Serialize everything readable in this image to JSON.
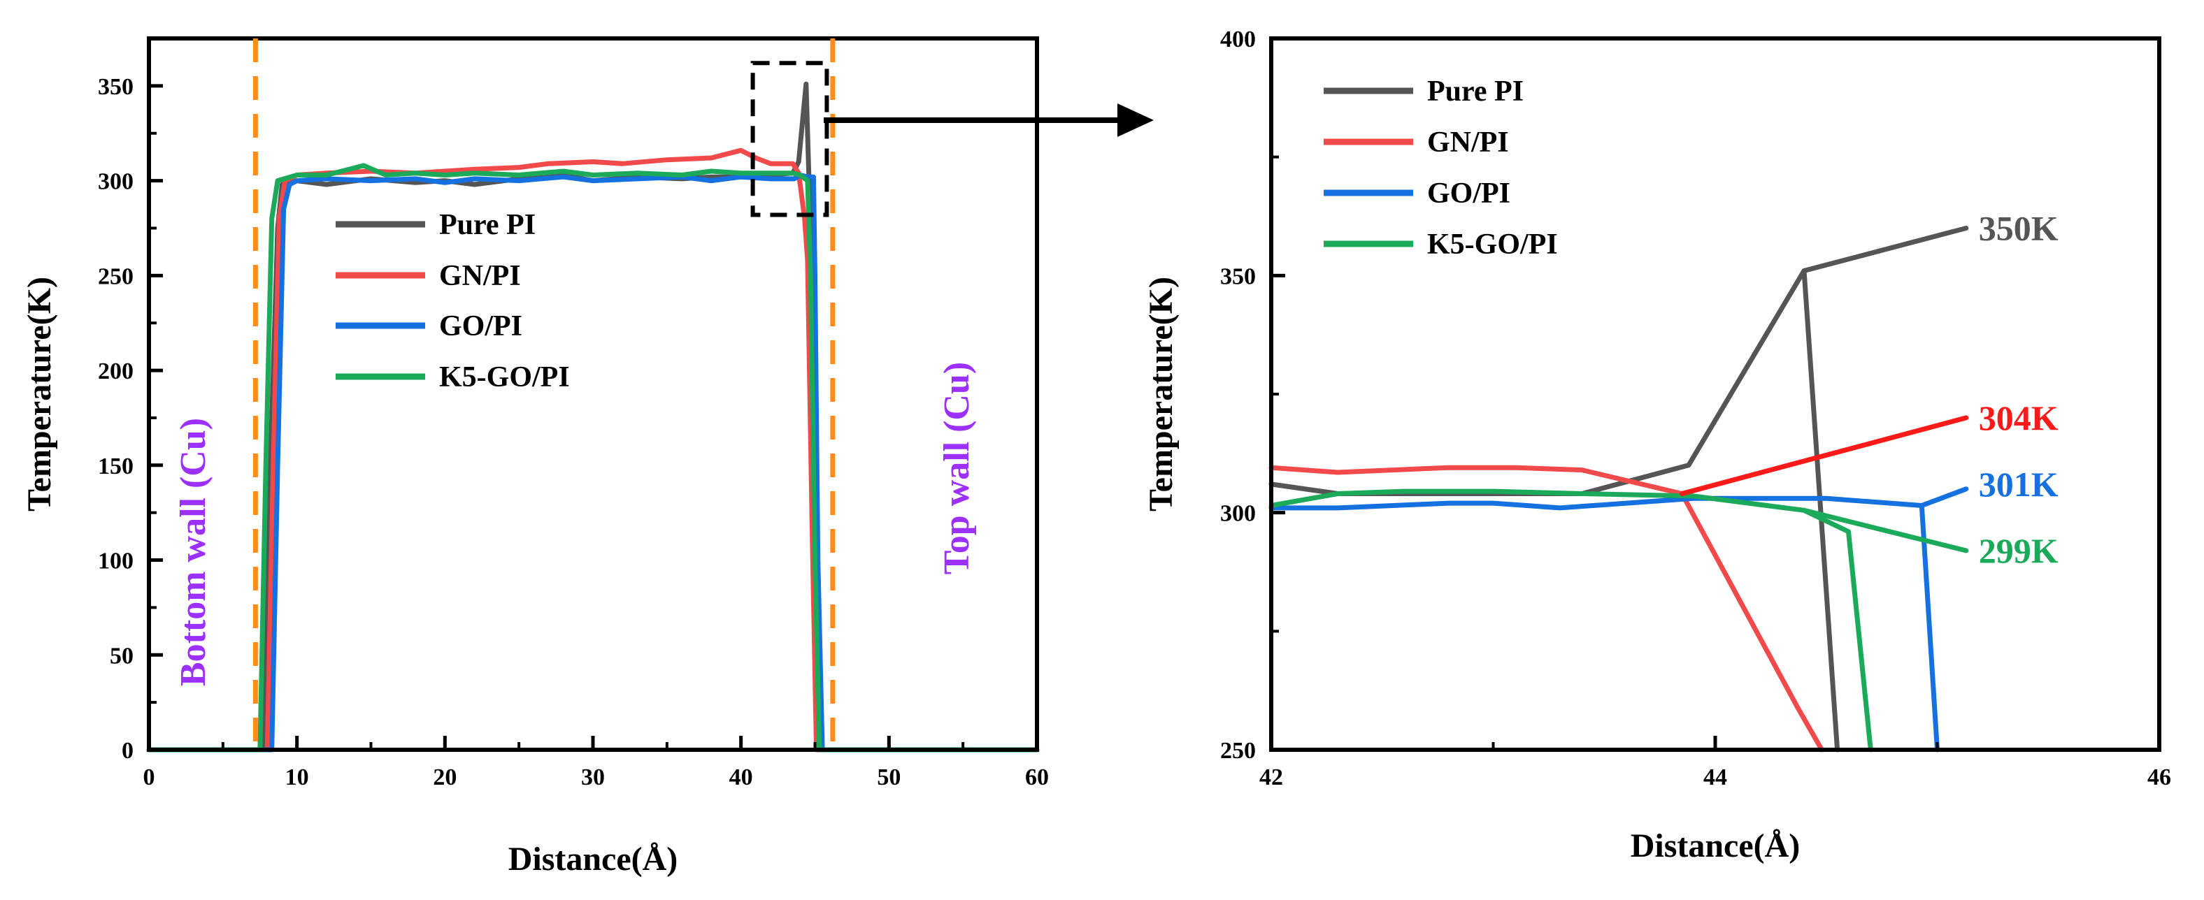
{
  "chart_data": [
    {
      "type": "line",
      "panel": "left",
      "xlabel": "Distance(Å)",
      "ylabel": "Temperature(K)",
      "xlim": [
        0,
        60
      ],
      "ylim": [
        0,
        375
      ],
      "xticks": [
        0,
        10,
        20,
        30,
        40,
        50,
        60
      ],
      "yticks": [
        0,
        50,
        100,
        150,
        200,
        250,
        300,
        350
      ],
      "legend": [
        "Pure PI",
        "GN/PI",
        "GO/PI",
        "K5-GO/PI"
      ],
      "annotations": {
        "bottom_wall": "Bottom wall (Cu)",
        "top_wall": "Top wall (Cu)",
        "wall_x_positions": [
          7.2,
          46.2
        ],
        "zoom_box": {
          "x": [
            40.8,
            45.8
          ],
          "y": [
            282,
            362
          ]
        }
      },
      "series": [
        {
          "name": "Pure PI",
          "color": "#555555",
          "x": [
            0,
            7.8,
            8.2,
            8.7,
            9.0,
            10,
            12,
            15,
            18,
            20,
            22,
            25,
            28,
            30,
            33,
            36,
            38,
            40,
            42,
            43.5,
            43.9,
            44.4,
            44.6,
            44.9,
            45.1,
            45.4,
            46,
            60
          ],
          "y": [
            0,
            0,
            150,
            275,
            298,
            300,
            298,
            301,
            299,
            300,
            298,
            301,
            303,
            300,
            302,
            301,
            302,
            302,
            303,
            304,
            310,
            351,
            300,
            100,
            10,
            0,
            0,
            0
          ]
        },
        {
          "name": "GN/PI",
          "color": "#f24a4a",
          "x": [
            0,
            8.0,
            8.4,
            8.8,
            9.2,
            10,
            12,
            15,
            18,
            20,
            22,
            25,
            27,
            30,
            32,
            35,
            38,
            40,
            41,
            42,
            43.5,
            43.9,
            44.3,
            44.5,
            44.8,
            45.1,
            46,
            60
          ],
          "y": [
            0,
            0,
            150,
            280,
            300,
            303,
            304,
            305,
            304,
            305,
            306,
            307,
            309,
            310,
            309,
            311,
            312,
            316,
            312,
            309,
            309,
            304,
            280,
            258,
            120,
            0,
            0,
            0
          ]
        },
        {
          "name": "GO/PI",
          "color": "#1570e0",
          "x": [
            0,
            8.3,
            8.7,
            9.1,
            9.5,
            10,
            12,
            15,
            18,
            20,
            22,
            25,
            28,
            30,
            33,
            36,
            38,
            40,
            42,
            43.6,
            44.0,
            44.5,
            44.9,
            45.0,
            45.2,
            45.5,
            46,
            60
          ],
          "y": [
            0,
            0,
            150,
            285,
            298,
            300,
            301,
            300,
            301,
            299,
            301,
            300,
            302,
            300,
            301,
            302,
            300,
            302,
            301,
            301,
            303,
            302,
            302,
            250,
            100,
            0,
            0,
            0
          ]
        },
        {
          "name": "K5-GO/PI",
          "color": "#1aaa5a",
          "x": [
            0,
            7.5,
            7.9,
            8.3,
            8.7,
            10,
            12,
            14.5,
            16,
            18,
            20,
            22,
            25,
            28,
            30,
            33,
            36,
            38,
            40,
            42,
            43.5,
            44.0,
            44.5,
            44.7,
            45.0,
            45.3,
            46,
            60
          ],
          "y": [
            0,
            0,
            150,
            280,
            300,
            303,
            303,
            308,
            303,
            304,
            303,
            304,
            303,
            305,
            303,
            304,
            303,
            305,
            304,
            304,
            304,
            303,
            300,
            250,
            100,
            0,
            0,
            0
          ]
        }
      ]
    },
    {
      "type": "line",
      "panel": "right",
      "xlabel": "Distance(Å)",
      "ylabel": "Temperature(K)",
      "xlim": [
        42,
        46
      ],
      "ylim": [
        250,
        400
      ],
      "xticks": [
        42,
        44,
        46
      ],
      "yticks": [
        250,
        300,
        350,
        400
      ],
      "legend": [
        "Pure PI",
        "GN/PI",
        "GO/PI",
        "K5-GO/PI"
      ],
      "end_labels": [
        {
          "text": "350K",
          "color": "#555555",
          "x": 45.13,
          "y": 360
        },
        {
          "text": "304K",
          "color": "#ff1a1a",
          "x": 45.13,
          "y": 320
        },
        {
          "text": "301K",
          "color": "#1570e0",
          "x": 45.13,
          "y": 306
        },
        {
          "text": "299K",
          "color": "#1aaa5a",
          "x": 45.13,
          "y": 292
        }
      ],
      "series": [
        {
          "name": "Pure PI",
          "color": "#555555",
          "x": [
            42.0,
            42.3,
            42.6,
            43.0,
            43.4,
            43.88,
            44.4,
            44.55
          ],
          "y": [
            306,
            304,
            304,
            304,
            304,
            310,
            351,
            250
          ]
        },
        {
          "name": "GN/PI",
          "color": "#f24a4a",
          "x": [
            42.0,
            42.3,
            42.8,
            43.1,
            43.4,
            43.85,
            44.37,
            44.48
          ],
          "y": [
            309.5,
            308.5,
            309.5,
            309.5,
            309,
            304,
            259,
            250
          ]
        },
        {
          "name": "GO/PI",
          "color": "#1570e0",
          "x": [
            42.0,
            42.3,
            42.8,
            43.0,
            43.3,
            43.9,
            44.5,
            44.93,
            45.0
          ],
          "y": [
            301,
            301,
            302,
            302,
            301,
            303,
            303,
            301.5,
            250
          ]
        },
        {
          "name": "K5-GO/PI",
          "color": "#1aaa5a",
          "x": [
            42.0,
            42.3,
            42.6,
            43.0,
            43.4,
            43.9,
            44.4,
            44.6,
            44.7
          ],
          "y": [
            301.5,
            304,
            304.5,
            304.5,
            304,
            303.5,
            300.5,
            296,
            250
          ]
        },
        {
          "name": "Pure PI (trend)",
          "color": "#555555",
          "x": [
            44.4,
            45.13
          ],
          "y": [
            351,
            360
          ]
        },
        {
          "name": "GN/PI (trend)",
          "color": "#ff1a1a",
          "x": [
            43.85,
            45.13
          ],
          "y": [
            304,
            320
          ]
        },
        {
          "name": "GO/PI (trend)",
          "color": "#1570e0",
          "x": [
            44.93,
            45.13
          ],
          "y": [
            301.5,
            305
          ]
        },
        {
          "name": "K5-GO/PI (trend)",
          "color": "#1aaa5a",
          "x": [
            44.4,
            45.13
          ],
          "y": [
            300.5,
            292
          ]
        }
      ]
    }
  ]
}
